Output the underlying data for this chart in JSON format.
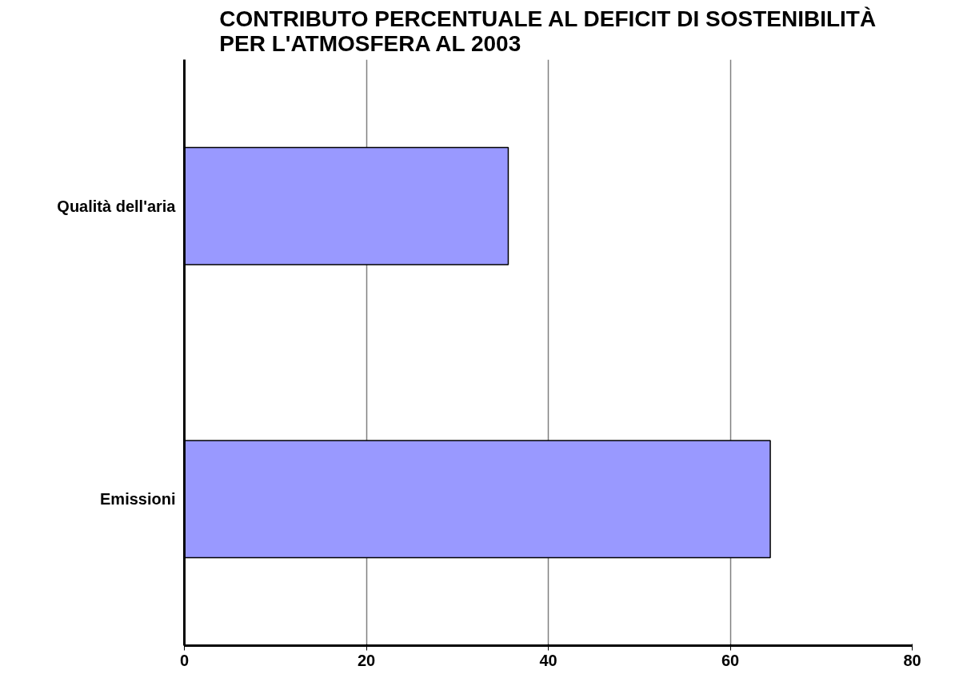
{
  "chart_data": {
    "type": "bar",
    "orientation": "horizontal",
    "title": "CONTRIBUTO PERCENTUALE AL DEFICIT DI SOSTENIBILITÀ\nPER L'ATMOSFERA AL 2003",
    "categories": [
      "Qualità dell'aria",
      "Emissioni"
    ],
    "values": [
      35.6,
      64.4
    ],
    "color": "#9999ff",
    "xlim": [
      0,
      80
    ],
    "xticks": [
      0,
      20,
      40,
      60,
      80
    ],
    "grid": "x"
  }
}
